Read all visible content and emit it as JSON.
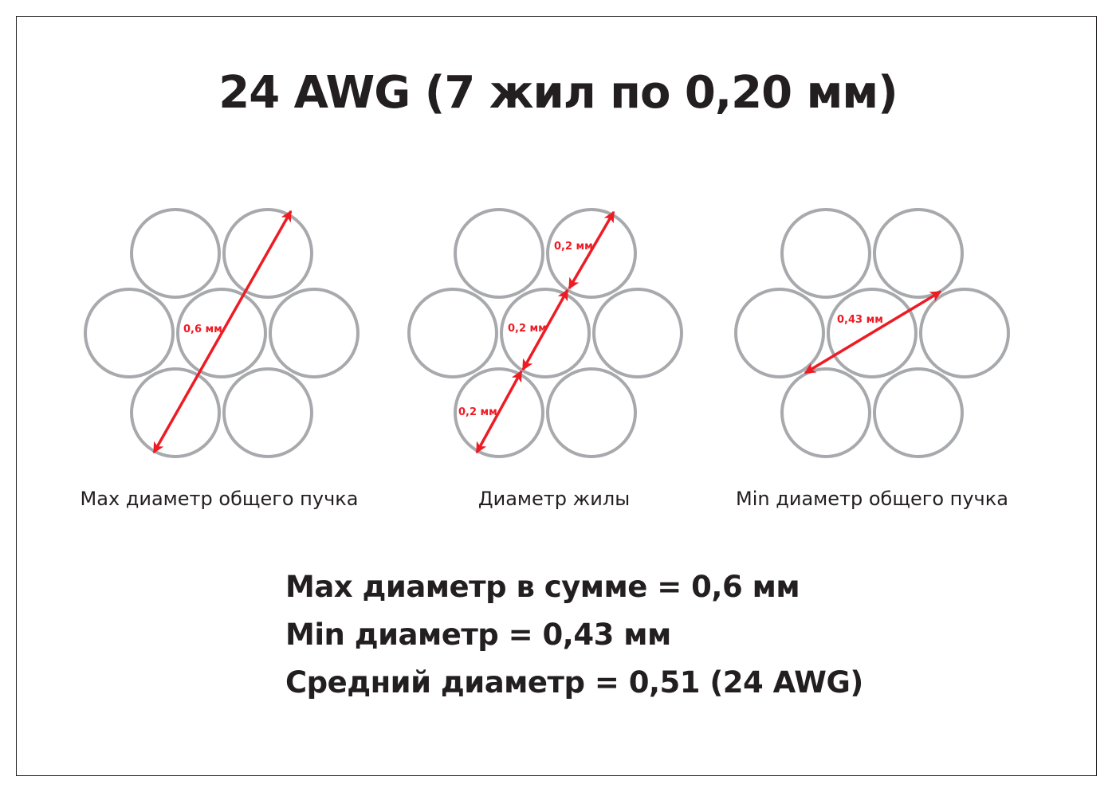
{
  "title": "24 AWG (7 жил по 0,20 мм)",
  "colors": {
    "wire": "#a7a9ac",
    "arrow": "#ed1c24",
    "text": "#231f20"
  },
  "diagrams": [
    {
      "caption": "Max диаметр общего пучка",
      "labels": [
        "0,6 мм"
      ]
    },
    {
      "caption": "Диаметр жилы",
      "labels": [
        "0,2 мм",
        "0,2 мм",
        "0,2 мм"
      ]
    },
    {
      "caption": "Min диаметр общего пучка",
      "labels": [
        "0,43 мм"
      ]
    }
  ],
  "summary": [
    "Max диаметр в сумме = 0,6 мм",
    "Min диаметр = 0,43 мм",
    "Средний диаметр = 0,51 (24 AWG)"
  ]
}
